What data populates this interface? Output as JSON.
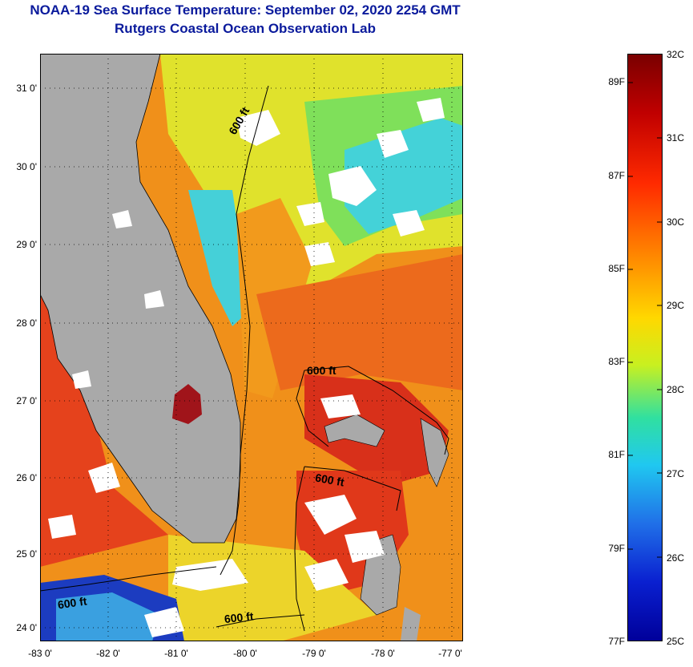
{
  "header": {
    "title_line1": "NOAA-19 Sea Surface Temperature:  September 02, 2020 2254 GMT",
    "title_line2": "Rutgers Coastal Ocean Observation Lab"
  },
  "map": {
    "lat_labels": [
      "31 0'",
      "30 0'",
      "29 0'",
      "28 0'",
      "27 0'",
      "26 0'",
      "25 0'",
      "24 0'"
    ],
    "lon_labels": [
      "-83 0'",
      "-82 0'",
      "-81 0'",
      "-80 0'",
      "-79 0'",
      "-78 0'",
      "-77 0'"
    ],
    "contour_label": "600 ft",
    "colors": {
      "land": "#a9a9a9",
      "cloud": "#ffffff",
      "warm": "#e8401c",
      "hot": "#b01212",
      "orange": "#f07a1a",
      "yellow": "#e9e52a",
      "green": "#7ce04a",
      "cyan": "#35d4e0",
      "blue": "#1030b8"
    }
  },
  "colorbar": {
    "celsius_labels": [
      "32C",
      "31C",
      "30C",
      "29C",
      "28C",
      "27C",
      "26C",
      "25C"
    ],
    "fahrenheit_labels": [
      "89F",
      "87F",
      "85F",
      "83F",
      "81F",
      "79F",
      "77F"
    ]
  }
}
